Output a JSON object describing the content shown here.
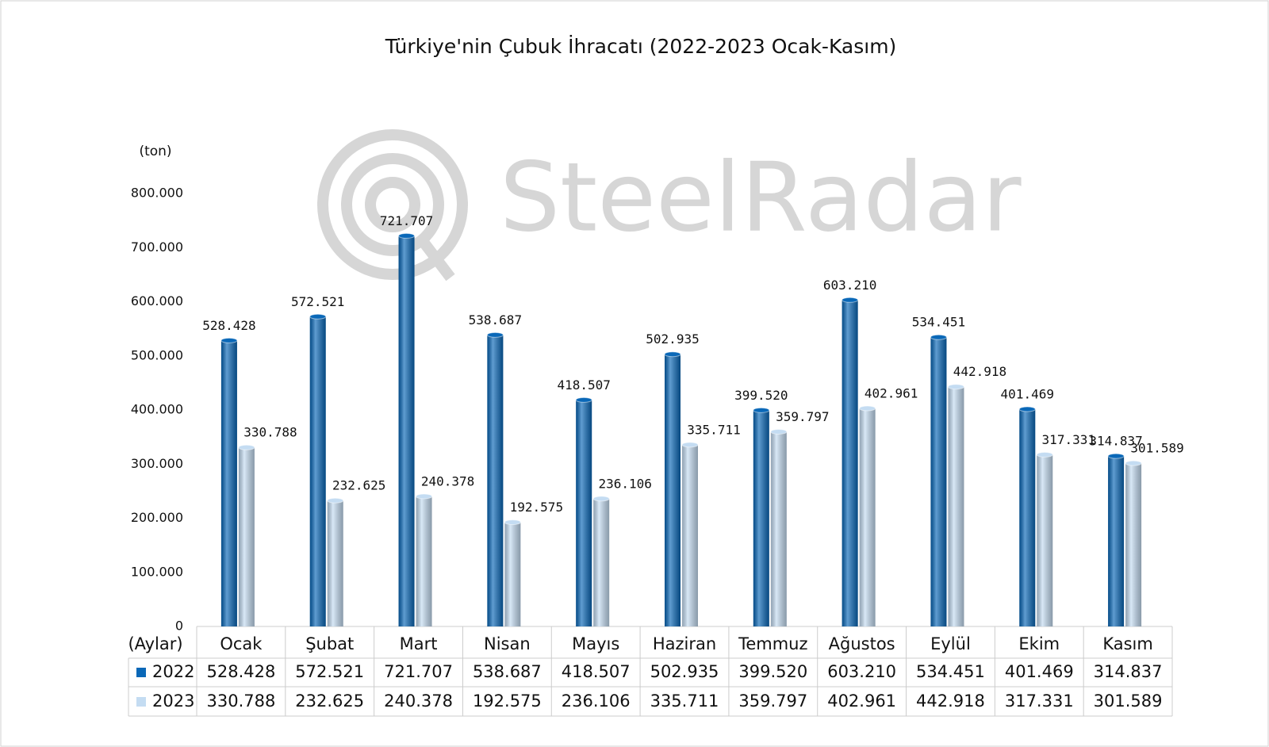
{
  "watermark": "SteelRadar",
  "chart_data": {
    "type": "bar",
    "title": "Türkiye'nin Çubuk İhracatı (2022-2023 Ocak-Kasım)",
    "y_label": "(ton)",
    "x_label": "(Aylar)",
    "categories": [
      "Ocak",
      "Şubat",
      "Mart",
      "Nisan",
      "Mayıs",
      "Haziran",
      "Temmuz",
      "Ağustos",
      "Eylül",
      "Ekim",
      "Kasım"
    ],
    "series": [
      {
        "name": "2022",
        "color": "#0a68b8",
        "values": [
          528428,
          572521,
          721707,
          538687,
          418507,
          502935,
          399520,
          603210,
          534451,
          401469,
          314837
        ],
        "value_labels": [
          "528.428",
          "572.521",
          "721.707",
          "538.687",
          "418.507",
          "502.935",
          "399.520",
          "603.210",
          "534.451",
          "401.469",
          "314.837"
        ]
      },
      {
        "name": "2023",
        "color": "#c4dcf2",
        "values": [
          330788,
          232625,
          240378,
          192575,
          236106,
          335711,
          359797,
          402961,
          442918,
          317331,
          301589
        ],
        "value_labels": [
          "330.788",
          "232.625",
          "240.378",
          "192.575",
          "236.106",
          "335.711",
          "359.797",
          "402.961",
          "442.918",
          "317.331",
          "301.589"
        ]
      }
    ],
    "ylim": [
      0,
      800000
    ],
    "yticks": [
      0,
      {
        "value": 100000,
        "label": "100.000"
      },
      {
        "value": 200000,
        "label": "200.000"
      },
      {
        "value": 300000,
        "label": "300.000"
      },
      {
        "value": 400000,
        "label": "400.000"
      },
      {
        "value": 500000,
        "label": "500.000"
      },
      {
        "value": 600000,
        "label": "600.000"
      },
      {
        "value": 700000,
        "label": "700.000"
      },
      {
        "value": 800000,
        "label": "800.000"
      }
    ],
    "grid": false
  }
}
